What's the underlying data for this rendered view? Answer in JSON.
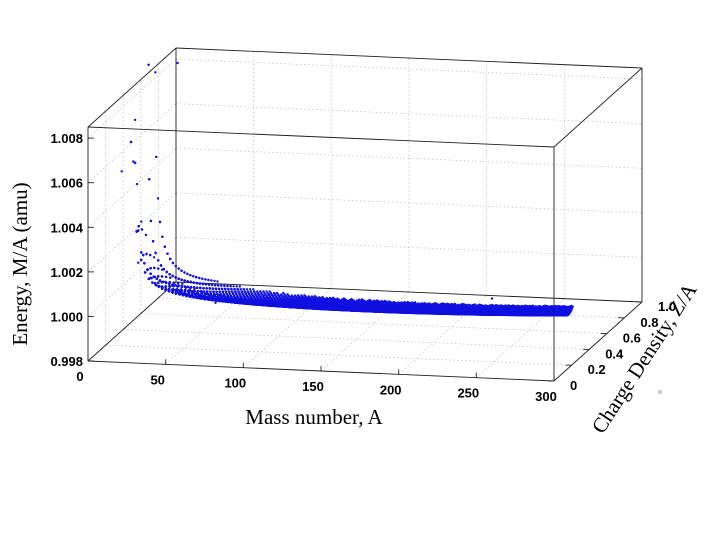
{
  "chart_data": {
    "type": "scatter",
    "title": "",
    "xlabel": "Mass number, A",
    "ylabel": "Charge Density, Z/A",
    "zlabel": "Energy, M/A (amu)",
    "x_ticks": [
      "0",
      "50",
      "100",
      "150",
      "200",
      "250",
      "300"
    ],
    "y_ticks": [
      "0",
      "0.2",
      "0.4",
      "0.6",
      "0.8",
      "1.0"
    ],
    "z_ticks": [
      "0.998",
      "1.000",
      "1.002",
      "1.004",
      "1.006",
      "1.008"
    ],
    "xlim": [
      0,
      300
    ],
    "ylim": [
      0,
      1
    ],
    "zlim": [
      0.998,
      1.0085
    ],
    "grid": true,
    "marker_color": "#1010e0",
    "description_points": [
      {
        "x": 1,
        "y": 1.0,
        "z": 1.00783
      },
      {
        "x": 2,
        "y": 0.5,
        "z": 1.00705
      },
      {
        "x": 3,
        "y": 0.33,
        "z": 1.00535
      },
      {
        "x": 4,
        "y": 0.5,
        "z": 1.00065
      },
      {
        "x": 6,
        "y": 0.5,
        "z": 1.0025
      },
      {
        "x": 7,
        "y": 0.43,
        "z": 1.00229
      },
      {
        "x": 12,
        "y": 0.5,
        "z": 1.0
      },
      {
        "x": 16,
        "y": 0.5,
        "z": 0.99966
      },
      {
        "x": 56,
        "y": 0.46,
        "z": 0.99915
      },
      {
        "x": 120,
        "y": 0.42,
        "z": 0.99925
      },
      {
        "x": 208,
        "y": 0.39,
        "z": 0.99948
      },
      {
        "x": 238,
        "y": 0.39,
        "z": 1.00013
      }
    ]
  }
}
